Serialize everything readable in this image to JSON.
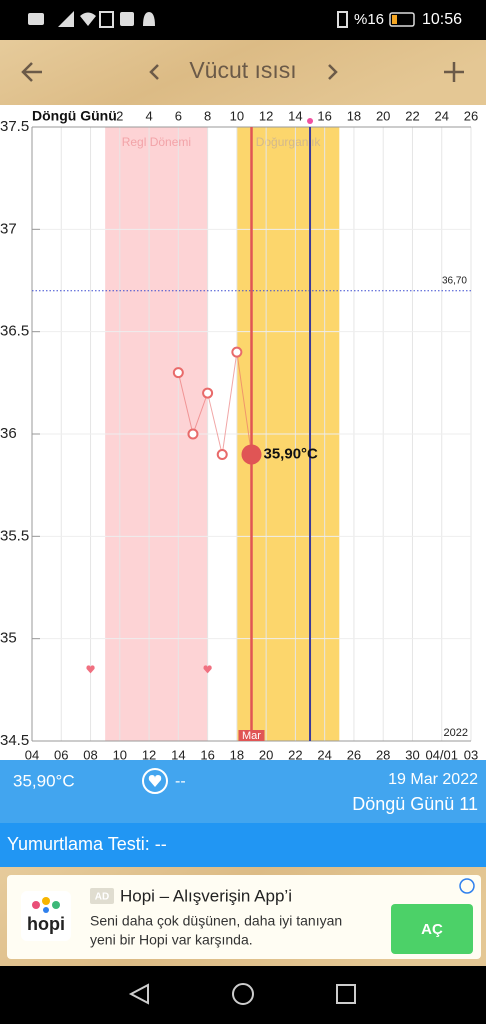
{
  "status_bar": {
    "battery": "%16",
    "time": "10:56"
  },
  "header": {
    "title": "Vücut ısısı"
  },
  "chart_data": {
    "type": "line",
    "x2_label": "Döngü Günü",
    "xlim": [
      4,
      34
    ],
    "xticks": [
      {
        "value": 4,
        "label": "04"
      },
      {
        "value": 6,
        "label": "06"
      },
      {
        "value": 8,
        "label": "08"
      },
      10,
      12,
      14,
      16,
      18,
      20,
      22,
      24,
      26,
      28,
      30,
      {
        "value": 32,
        "label": "04/01"
      },
      {
        "value": 34,
        "label": "03"
      }
    ],
    "x2lim": [
      -4,
      26
    ],
    "x2ticks": [
      2,
      4,
      6,
      8,
      10,
      12,
      14,
      16,
      18,
      20,
      22,
      24,
      26
    ],
    "ylim": [
      34.5,
      37.5
    ],
    "yticks": [
      34.5,
      35,
      35.5,
      36,
      36.5,
      37,
      37.5
    ],
    "grid": true,
    "series": [
      {
        "color": "#e86a6a",
        "x": [
          14,
          15,
          16,
          17,
          18,
          19
        ],
        "values": [
          36.3,
          36.0,
          36.2,
          35.9,
          36.4,
          35.9
        ]
      }
    ],
    "highlight": {
      "x": 19,
      "value": 35.9,
      "label": "35,90°C",
      "color": "#e05555"
    },
    "bands": [
      {
        "label": "Regl Dönemi",
        "from": 9,
        "to": 16,
        "color": "#fdd3d5",
        "text_color": "#f2a3a8"
      },
      {
        "label": "Doğurganlık",
        "from": 18,
        "to": 25,
        "color": "#fcd66c",
        "text_color": "#d3b98c"
      }
    ],
    "reference_line": {
      "value": 36.7,
      "label": "36,70",
      "color": "#3b4bd0"
    },
    "ovulation": {
      "x": 23,
      "color": "#3a3a9a"
    },
    "hearts": {
      "x": [
        8,
        16
      ],
      "values": [
        34.85,
        34.85
      ],
      "color": "#f07080"
    },
    "month_label": "Mar",
    "year_label": "2022"
  },
  "summary": {
    "temperature": "35,90°C",
    "heart": "--",
    "date": "19 Mar 2022",
    "cycle_day": "Döngü Günü 11"
  },
  "ovulation_test": "Yumurtlama Testi: --",
  "ad": {
    "logo": "hopi",
    "badge": "AD",
    "title": "Hopi – Alışverişin App’i",
    "line1": "Seni daha çok düşünen, daha iyi tanıyan",
    "line2": "yeni bir Hopi var karşında.",
    "button": "AÇ"
  }
}
